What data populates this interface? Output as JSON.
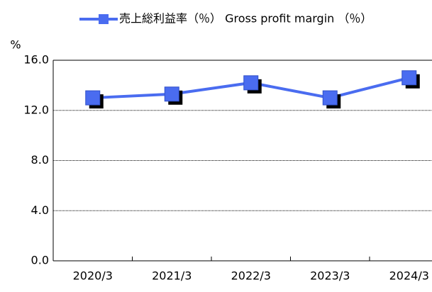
{
  "chart_data": {
    "type": "line",
    "legend_label": "売上総利益率（％） Gross profit margin （％）",
    "y_unit": "%",
    "categories": [
      "2020/3",
      "2021/3",
      "2022/3",
      "2023/3",
      "2024/3"
    ],
    "series": [
      {
        "name": "売上総利益率（％） Gross profit margin （％）",
        "color": "#4a6cf0",
        "values": [
          13.0,
          13.3,
          14.2,
          13.0,
          14.6
        ]
      }
    ],
    "ylim": [
      0,
      16
    ],
    "yticks": [
      {
        "value": 0,
        "label": "0.0"
      },
      {
        "value": 4,
        "label": "4.0"
      },
      {
        "value": 8,
        "label": "8.0"
      },
      {
        "value": 12,
        "label": "12.0"
      },
      {
        "value": 16,
        "label": "16.0"
      }
    ],
    "grid": true
  }
}
